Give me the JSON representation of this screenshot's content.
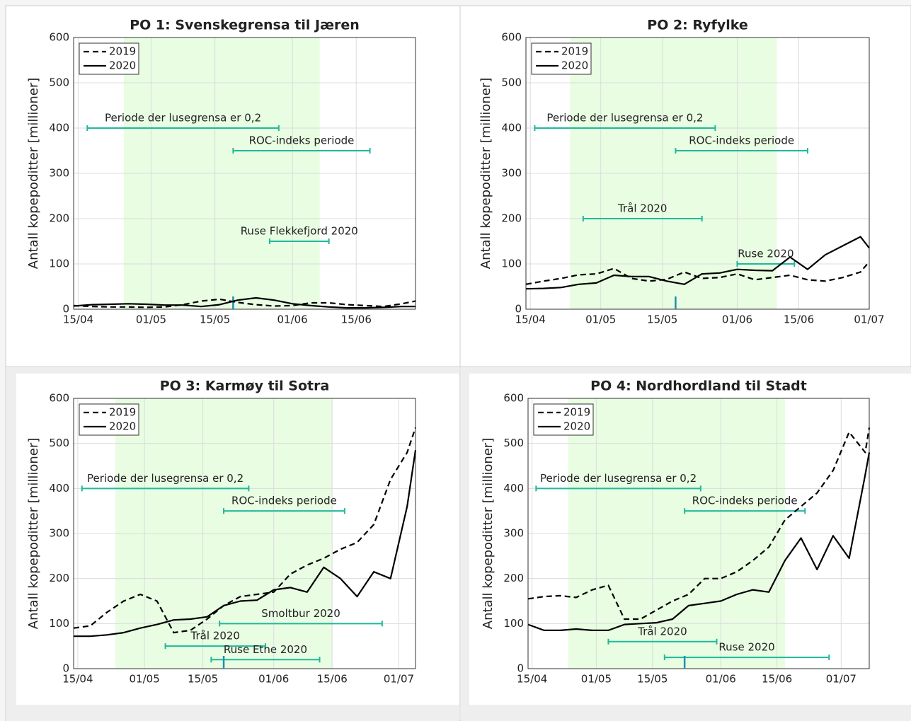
{
  "chart_data": [
    {
      "type": "line",
      "title": "PO 1: Svenskegrensa til Jæren",
      "y_label": "Antall kopepoditter [millioner]",
      "xlim": [
        "14/04",
        "28/06"
      ],
      "xticks": [
        "15/04",
        "01/05",
        "15/05",
        "01/06",
        "15/06"
      ],
      "ylim": [
        0,
        600
      ],
      "yticks": [
        0,
        100,
        200,
        300,
        400,
        500,
        600
      ],
      "grid": true,
      "legend": "upper left",
      "x": [
        "14/04",
        "18/04",
        "22/04",
        "26/04",
        "30/04",
        "04/05",
        "08/05",
        "12/05",
        "16/05",
        "20/05",
        "24/05",
        "28/05",
        "01/06",
        "05/06",
        "09/06",
        "13/06",
        "17/06",
        "21/06",
        "25/06",
        "28/06"
      ],
      "series": [
        {
          "name": "2019",
          "color": "#000000",
          "dash": true,
          "values": [
            8,
            6,
            5,
            5,
            4,
            5,
            10,
            18,
            22,
            15,
            10,
            7,
            8,
            14,
            14,
            10,
            8,
            6,
            12,
            18
          ]
        },
        {
          "name": "2020",
          "color": "#000000",
          "dash": false,
          "values": [
            7,
            10,
            11,
            12,
            11,
            9,
            9,
            6,
            10,
            20,
            25,
            20,
            12,
            8,
            5,
            3,
            3,
            4,
            6,
            6
          ]
        }
      ],
      "shaded": [
        "25/04",
        "07/06"
      ],
      "marker": "19/05",
      "intervals": [
        {
          "label": "Periode der lusegrensa er 0,2",
          "start": "17/04",
          "end": "29/05",
          "level": 400
        },
        {
          "label": "ROC-indeks periode",
          "start": "19/05",
          "end": "18/06",
          "level": 350
        },
        {
          "label": "Ruse Flekkefjord 2020",
          "start": "27/05",
          "end": "09/06",
          "level": 150
        }
      ]
    },
    {
      "type": "line",
      "title": "PO 2: Ryfylke",
      "y_label": "Antall kopepoditter [millioner]",
      "xlim": [
        "14/04",
        "01/07"
      ],
      "xticks": [
        "15/04",
        "01/05",
        "15/05",
        "01/06",
        "15/06",
        "01/07"
      ],
      "ylim": [
        0,
        600
      ],
      "yticks": [
        0,
        100,
        200,
        300,
        400,
        500,
        600
      ],
      "grid": true,
      "legend": "upper left",
      "x": [
        "14/04",
        "18/04",
        "22/04",
        "26/04",
        "30/04",
        "04/05",
        "08/05",
        "12/05",
        "16/05",
        "20/05",
        "24/05",
        "28/05",
        "01/06",
        "05/06",
        "09/06",
        "13/06",
        "17/06",
        "21/06",
        "25/06",
        "29/06",
        "01/07"
      ],
      "series": [
        {
          "name": "2019",
          "color": "#000000",
          "dash": true,
          "values": [
            55,
            62,
            68,
            76,
            78,
            90,
            68,
            62,
            66,
            82,
            68,
            70,
            78,
            65,
            70,
            75,
            65,
            62,
            70,
            82,
            105
          ]
        },
        {
          "name": "2020",
          "color": "#000000",
          "dash": false,
          "values": [
            45,
            46,
            48,
            55,
            58,
            75,
            72,
            72,
            62,
            55,
            78,
            80,
            88,
            86,
            85,
            115,
            88,
            120,
            140,
            160,
            135
          ]
        }
      ],
      "shaded": [
        "24/04",
        "10/06"
      ],
      "marker": "18/05",
      "intervals": [
        {
          "label": "Periode der lusegrensa er 0,2",
          "start": "16/04",
          "end": "27/05",
          "level": 400
        },
        {
          "label": "ROC-indeks periode",
          "start": "18/05",
          "end": "17/06",
          "level": 350
        },
        {
          "label": "Trål 2020",
          "start": "27/04",
          "end": "24/05",
          "level": 200
        },
        {
          "label": "Ruse 2020",
          "start": "01/06",
          "end": "14/06",
          "level": 100
        }
      ]
    },
    {
      "type": "line",
      "title": "PO 3: Karmøy til Sotra",
      "y_label": "Antall kopepoditter [millioner]",
      "xlim": [
        "14/04",
        "05/07"
      ],
      "xticks": [
        "15/04",
        "01/05",
        "15/05",
        "01/06",
        "15/06",
        "01/07"
      ],
      "ylim": [
        0,
        600
      ],
      "yticks": [
        0,
        100,
        200,
        300,
        400,
        500,
        600
      ],
      "grid": true,
      "legend": "upper left",
      "x": [
        "14/04",
        "18/04",
        "22/04",
        "26/04",
        "30/04",
        "04/05",
        "08/05",
        "12/05",
        "16/05",
        "20/05",
        "24/05",
        "28/05",
        "01/06",
        "05/06",
        "09/06",
        "13/06",
        "17/06",
        "21/06",
        "25/06",
        "29/06",
        "03/07",
        "05/07"
      ],
      "series": [
        {
          "name": "2019",
          "color": "#000000",
          "dash": true,
          "values": [
            90,
            95,
            125,
            150,
            165,
            150,
            80,
            85,
            110,
            140,
            160,
            165,
            170,
            210,
            230,
            245,
            265,
            280,
            320,
            420,
            480,
            535
          ]
        },
        {
          "name": "2020",
          "color": "#000000",
          "dash": false,
          "values": [
            72,
            72,
            75,
            80,
            90,
            98,
            108,
            110,
            115,
            140,
            150,
            152,
            175,
            180,
            170,
            225,
            200,
            160,
            215,
            200,
            360,
            485
          ]
        }
      ],
      "shaded": [
        "24/04",
        "15/06"
      ],
      "marker": "20/05",
      "intervals": [
        {
          "label": "Periode der lusegrensa er 0,2",
          "start": "16/04",
          "end": "26/05",
          "level": 400
        },
        {
          "label": "ROC-indeks periode",
          "start": "20/05",
          "end": "18/06",
          "level": 350
        },
        {
          "label": "Smoltbur 2020",
          "start": "19/05",
          "end": "27/06",
          "level": 100
        },
        {
          "label": "Trål 2020",
          "start": "06/05",
          "end": "30/05",
          "level": 50
        },
        {
          "label": "Ruse Etne 2020",
          "start": "17/05",
          "end": "12/06",
          "level": 20
        }
      ]
    },
    {
      "type": "line",
      "title": "PO 4: Nordhordland til Stadt",
      "y_label": "Antall kopepoditter [millioner]",
      "xlim": [
        "14/04",
        "08/07"
      ],
      "xticks": [
        "15/04",
        "01/05",
        "15/05",
        "01/06",
        "15/06",
        "01/07"
      ],
      "ylim": [
        0,
        600
      ],
      "yticks": [
        0,
        100,
        200,
        300,
        400,
        500,
        600
      ],
      "grid": true,
      "legend": "upper left",
      "x": [
        "14/04",
        "18/04",
        "22/04",
        "26/04",
        "30/04",
        "04/05",
        "08/05",
        "12/05",
        "16/05",
        "20/05",
        "24/05",
        "28/05",
        "01/06",
        "05/06",
        "09/06",
        "13/06",
        "17/06",
        "21/06",
        "25/06",
        "29/06",
        "03/07",
        "07/07",
        "08/07"
      ],
      "series": [
        {
          "name": "2019",
          "color": "#000000",
          "dash": true,
          "values": [
            155,
            160,
            162,
            158,
            175,
            185,
            110,
            110,
            130,
            150,
            165,
            200,
            200,
            215,
            240,
            270,
            330,
            360,
            390,
            440,
            525,
            480,
            535
          ]
        },
        {
          "name": "2020",
          "color": "#000000",
          "dash": false,
          "values": [
            98,
            85,
            85,
            88,
            85,
            85,
            98,
            100,
            102,
            110,
            140,
            145,
            150,
            165,
            175,
            170,
            240,
            290,
            220,
            295,
            245,
            430,
            480
          ]
        }
      ],
      "shaded": [
        "24/04",
        "17/06"
      ],
      "marker": "23/05",
      "intervals": [
        {
          "label": "Periode der lusegrensa er 0,2",
          "start": "16/04",
          "end": "27/05",
          "level": 400
        },
        {
          "label": "ROC-indeks periode",
          "start": "23/05",
          "end": "22/06",
          "level": 350
        },
        {
          "label": "Trål 2020",
          "start": "04/05",
          "end": "31/05",
          "level": 60
        },
        {
          "label": "Ruse 2020",
          "start": "18/05",
          "end": "28/06",
          "level": 25
        }
      ]
    }
  ]
}
